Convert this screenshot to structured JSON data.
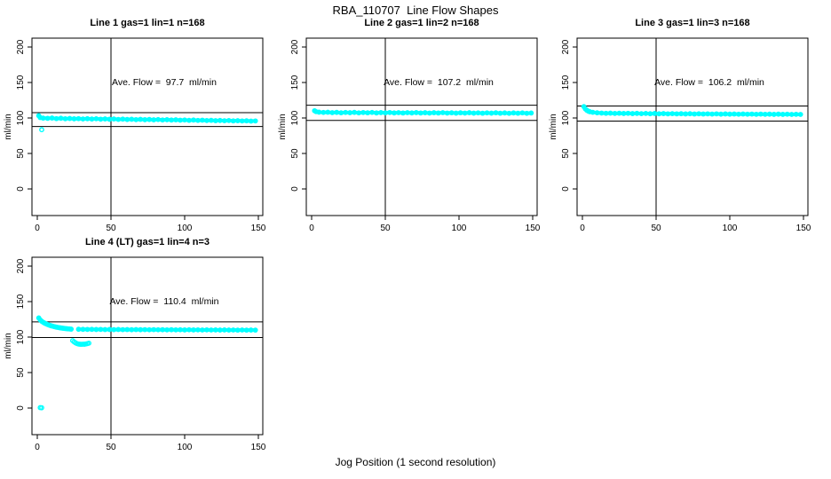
{
  "page": {
    "title": "RBA_110707  Line Flow Shapes",
    "xlabel": "Jog Position (1 second resolution)"
  },
  "colors": {
    "points": "#00FFFF",
    "axis": "#000000",
    "background": "#FFFFFF"
  },
  "axes": {
    "x_ticks": [
      0,
      50,
      100,
      150
    ],
    "y_ticks": [
      0,
      50,
      100,
      150,
      200
    ],
    "xlim": [
      0,
      150
    ],
    "ylim": [
      0,
      200
    ],
    "ylabel": "ml/min",
    "v_ref_line_x": 50
  },
  "chart_data": [
    {
      "type": "scatter",
      "title": "Line 1 gas=1 lin=1 n=168",
      "annotation": "Ave. Flow =  97.7  ml/min",
      "ave_flow": 97.7,
      "h_ref_lines": [
        107.5,
        87.9
      ],
      "v_ref_line_x": 50,
      "series": [
        {
          "name": "main-band",
          "style": "band",
          "points": [
            [
              1,
              103.2
            ],
            [
              2,
              100.6
            ],
            [
              4,
              99.8
            ],
            [
              7,
              99.5
            ],
            [
              10,
              99.9
            ],
            [
              13,
              99.1
            ],
            [
              16,
              99.6
            ],
            [
              19,
              98.9
            ],
            [
              22,
              99.3
            ],
            [
              25,
              98.8
            ],
            [
              28,
              99.1
            ],
            [
              31,
              98.6
            ],
            [
              34,
              99.0
            ],
            [
              37,
              98.5
            ],
            [
              40,
              98.9
            ],
            [
              43,
              98.3
            ],
            [
              46,
              98.7
            ],
            [
              49,
              98.2
            ],
            [
              52,
              98.6
            ],
            [
              55,
              98.0
            ],
            [
              58,
              98.4
            ],
            [
              61,
              97.9
            ],
            [
              64,
              98.2
            ],
            [
              67,
              97.7
            ],
            [
              70,
              98.1
            ],
            [
              73,
              97.6
            ],
            [
              76,
              97.9
            ],
            [
              79,
              97.4
            ],
            [
              82,
              97.8
            ],
            [
              85,
              97.2
            ],
            [
              88,
              97.6
            ],
            [
              91,
              97.1
            ],
            [
              94,
              97.4
            ],
            [
              97,
              96.9
            ],
            [
              100,
              97.2
            ],
            [
              103,
              96.7
            ],
            [
              106,
              97.1
            ],
            [
              109,
              96.6
            ],
            [
              112,
              96.9
            ],
            [
              115,
              96.4
            ],
            [
              118,
              96.7
            ],
            [
              121,
              96.2
            ],
            [
              124,
              96.5
            ],
            [
              127,
              96.1
            ],
            [
              130,
              96.4
            ],
            [
              133,
              95.9
            ],
            [
              136,
              96.2
            ],
            [
              139,
              95.8
            ],
            [
              142,
              96.0
            ],
            [
              145,
              95.6
            ],
            [
              148,
              95.8
            ]
          ]
        },
        {
          "name": "low-outlier",
          "style": "points",
          "points": [
            [
              3,
              83.5
            ]
          ]
        }
      ]
    },
    {
      "type": "scatter",
      "title": "Line 2 gas=1 lin=2 n=168",
      "annotation": "Ave. Flow =  107.2  ml/min",
      "ave_flow": 107.2,
      "h_ref_lines": [
        117.9,
        96.5
      ],
      "v_ref_line_x": 50,
      "series": [
        {
          "name": "main-band",
          "style": "band",
          "points": [
            [
              2,
              110.2
            ],
            [
              3,
              108.9
            ],
            [
              5,
              108.2
            ],
            [
              8,
              107.8
            ],
            [
              11,
              108.1
            ],
            [
              14,
              107.5
            ],
            [
              17,
              107.9
            ],
            [
              20,
              107.3
            ],
            [
              23,
              107.8
            ],
            [
              26,
              107.4
            ],
            [
              29,
              107.9
            ],
            [
              32,
              107.2
            ],
            [
              35,
              107.7
            ],
            [
              38,
              107.3
            ],
            [
              41,
              107.8
            ],
            [
              44,
              107.1
            ],
            [
              47,
              107.6
            ],
            [
              50,
              107.2
            ],
            [
              53,
              107.7
            ],
            [
              56,
              107.1
            ],
            [
              59,
              107.5
            ],
            [
              62,
              107.0
            ],
            [
              65,
              107.5
            ],
            [
              68,
              107.1
            ],
            [
              71,
              107.6
            ],
            [
              74,
              107.0
            ],
            [
              77,
              107.4
            ],
            [
              80,
              106.9
            ],
            [
              83,
              107.4
            ],
            [
              86,
              107.0
            ],
            [
              89,
              107.5
            ],
            [
              92,
              106.9
            ],
            [
              95,
              107.3
            ],
            [
              98,
              106.8
            ],
            [
              101,
              107.3
            ],
            [
              104,
              106.9
            ],
            [
              107,
              107.4
            ],
            [
              110,
              106.8
            ],
            [
              113,
              107.2
            ],
            [
              116,
              106.7
            ],
            [
              119,
              107.2
            ],
            [
              122,
              106.8
            ],
            [
              125,
              107.3
            ],
            [
              128,
              106.7
            ],
            [
              131,
              107.1
            ],
            [
              134,
              106.6
            ],
            [
              137,
              107.1
            ],
            [
              140,
              106.7
            ],
            [
              143,
              107.2
            ],
            [
              146,
              106.6
            ],
            [
              149,
              107.0
            ]
          ]
        }
      ]
    },
    {
      "type": "scatter",
      "title": "Line 3 gas=1 lin=3 n=168",
      "annotation": "Ave. Flow =  106.2  ml/min",
      "ave_flow": 106.2,
      "h_ref_lines": [
        116.8,
        95.6
      ],
      "v_ref_line_x": 50,
      "series": [
        {
          "name": "main-band",
          "style": "band",
          "points": [
            [
              1,
              116.0
            ],
            [
              2,
              112.8
            ],
            [
              3,
              110.9
            ],
            [
              4,
              109.6
            ],
            [
              5,
              108.8
            ],
            [
              7,
              108.0
            ],
            [
              10,
              107.3
            ],
            [
              13,
              106.9
            ],
            [
              16,
              106.6
            ],
            [
              19,
              106.8
            ],
            [
              22,
              106.4
            ],
            [
              25,
              106.7
            ],
            [
              28,
              106.3
            ],
            [
              31,
              106.6
            ],
            [
              34,
              106.2
            ],
            [
              37,
              106.5
            ],
            [
              40,
              106.1
            ],
            [
              43,
              106.4
            ],
            [
              46,
              106.0
            ],
            [
              49,
              106.3
            ],
            [
              52,
              105.9
            ],
            [
              55,
              106.2
            ],
            [
              58,
              105.8
            ],
            [
              61,
              106.1
            ],
            [
              64,
              105.8
            ],
            [
              67,
              106.0
            ],
            [
              70,
              105.7
            ],
            [
              73,
              106.0
            ],
            [
              76,
              105.6
            ],
            [
              79,
              105.9
            ],
            [
              82,
              105.6
            ],
            [
              85,
              105.8
            ],
            [
              88,
              105.5
            ],
            [
              91,
              105.8
            ],
            [
              94,
              105.4
            ],
            [
              97,
              105.7
            ],
            [
              100,
              105.4
            ],
            [
              103,
              105.6
            ],
            [
              106,
              105.3
            ],
            [
              109,
              105.6
            ],
            [
              112,
              105.3
            ],
            [
              115,
              105.5
            ],
            [
              118,
              105.2
            ],
            [
              121,
              105.5
            ],
            [
              124,
              105.2
            ],
            [
              127,
              105.4
            ],
            [
              130,
              105.1
            ],
            [
              133,
              105.4
            ],
            [
              136,
              105.1
            ],
            [
              139,
              105.3
            ],
            [
              142,
              105.0
            ],
            [
              145,
              105.2
            ],
            [
              148,
              105.0
            ]
          ]
        }
      ]
    },
    {
      "type": "scatter",
      "title": "Line 4 (LT) gas=1 lin=4 n=3",
      "annotation": "Ave. Flow =  110.4  ml/min",
      "ave_flow": 110.4,
      "h_ref_lines": [
        121.4,
        99.4
      ],
      "v_ref_line_x": 50,
      "series": [
        {
          "name": "decay-band",
          "style": "band",
          "points": [
            [
              1,
              127.0
            ],
            [
              2,
              124.2
            ],
            [
              3,
              122.3
            ],
            [
              4,
              120.8
            ],
            [
              5,
              119.6
            ],
            [
              6,
              118.6
            ],
            [
              7,
              117.7
            ],
            [
              8,
              116.9
            ],
            [
              9,
              116.2
            ],
            [
              10,
              115.6
            ],
            [
              11,
              115.0
            ],
            [
              12,
              114.5
            ],
            [
              13,
              114.0
            ],
            [
              14,
              113.6
            ],
            [
              15,
              113.2
            ],
            [
              16,
              112.9
            ],
            [
              17,
              112.6
            ],
            [
              18,
              112.3
            ],
            [
              19,
              112.0
            ],
            [
              20,
              111.8
            ],
            [
              21,
              111.6
            ],
            [
              22,
              111.4
            ],
            [
              23,
              111.2
            ]
          ]
        },
        {
          "name": "main-band",
          "style": "band",
          "points": [
            [
              28,
              111.0
            ],
            [
              31,
              110.9
            ],
            [
              34,
              110.8
            ],
            [
              37,
              110.9
            ],
            [
              40,
              110.7
            ],
            [
              43,
              110.8
            ],
            [
              46,
              110.6
            ],
            [
              49,
              110.7
            ],
            [
              52,
              110.5
            ],
            [
              55,
              110.7
            ],
            [
              58,
              110.5
            ],
            [
              61,
              110.6
            ],
            [
              64,
              110.4
            ],
            [
              67,
              110.6
            ],
            [
              70,
              110.4
            ],
            [
              73,
              110.5
            ],
            [
              76,
              110.3
            ],
            [
              79,
              110.5
            ],
            [
              82,
              110.3
            ],
            [
              85,
              110.4
            ],
            [
              88,
              110.2
            ],
            [
              91,
              110.4
            ],
            [
              94,
              110.2
            ],
            [
              97,
              110.3
            ],
            [
              100,
              110.1
            ],
            [
              103,
              110.3
            ],
            [
              106,
              110.1
            ],
            [
              109,
              110.2
            ],
            [
              112,
              110.0
            ],
            [
              115,
              110.2
            ],
            [
              118,
              110.0
            ],
            [
              121,
              110.1
            ],
            [
              124,
              109.9
            ],
            [
              127,
              110.1
            ],
            [
              130,
              109.9
            ],
            [
              133,
              110.0
            ],
            [
              136,
              109.8
            ],
            [
              139,
              110.0
            ],
            [
              142,
              109.8
            ],
            [
              145,
              109.9
            ],
            [
              148,
              109.8
            ]
          ]
        },
        {
          "name": "low-cluster",
          "style": "points",
          "points": [
            [
              24,
              95.0
            ],
            [
              25,
              93.2
            ],
            [
              26,
              91.8
            ],
            [
              27,
              90.8
            ],
            [
              28,
              90.2
            ],
            [
              29,
              89.9
            ],
            [
              30,
              89.8
            ],
            [
              31,
              90.0
            ],
            [
              32,
              89.9
            ],
            [
              33,
              90.3
            ],
            [
              34,
              90.8
            ],
            [
              35,
              91.4
            ]
          ]
        },
        {
          "name": "zero-points",
          "style": "points",
          "points": [
            [
              2,
              0.6
            ],
            [
              3,
              0.4
            ]
          ]
        }
      ]
    }
  ]
}
